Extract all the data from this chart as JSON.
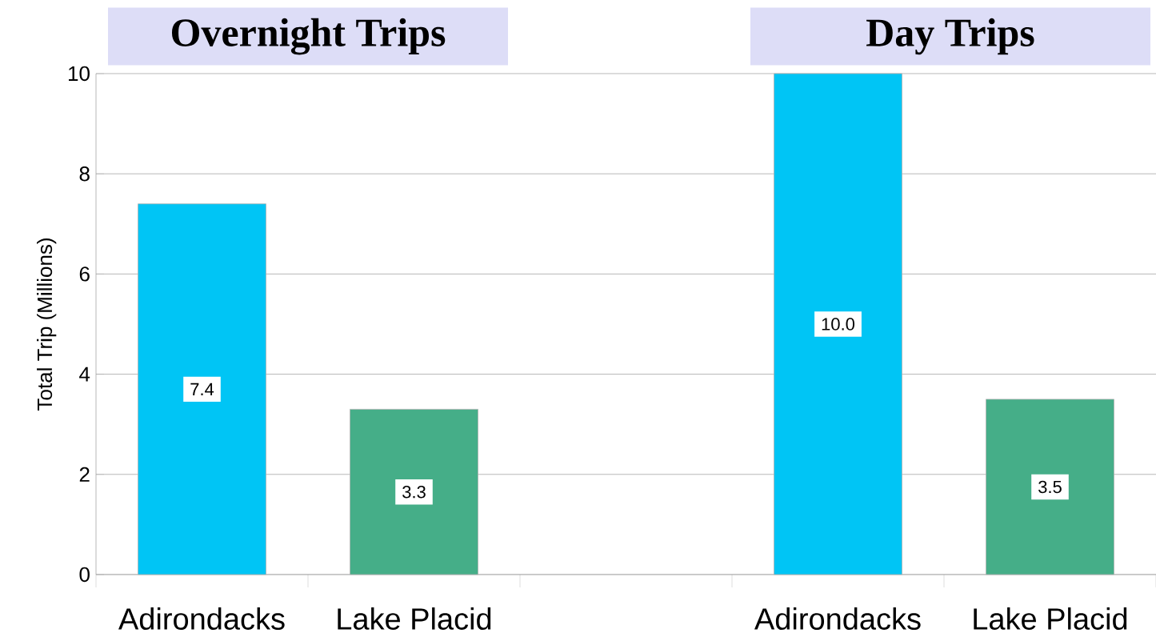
{
  "chart_data": {
    "type": "bar",
    "ylabel": "Total Trip (Millions)",
    "annotations": [
      "Overnight Trips",
      "Day Trips"
    ],
    "categories": [
      "Adirondacks",
      "Lake Placid",
      null,
      "Adirondacks",
      "Lake Placid"
    ],
    "values": [
      7.4,
      3.3,
      null,
      10.0,
      3.5
    ],
    "colors": [
      "#00c5f5",
      "#45ae88",
      "#ffffff",
      "#00c5f5",
      "#45ae88"
    ],
    "value_labels": [
      "7.4",
      "3.3",
      null,
      "10.0",
      "3.5"
    ],
    "ylim": [
      0,
      10
    ],
    "yticks": [
      0,
      2,
      4,
      6,
      8,
      10
    ],
    "grid": "y"
  }
}
